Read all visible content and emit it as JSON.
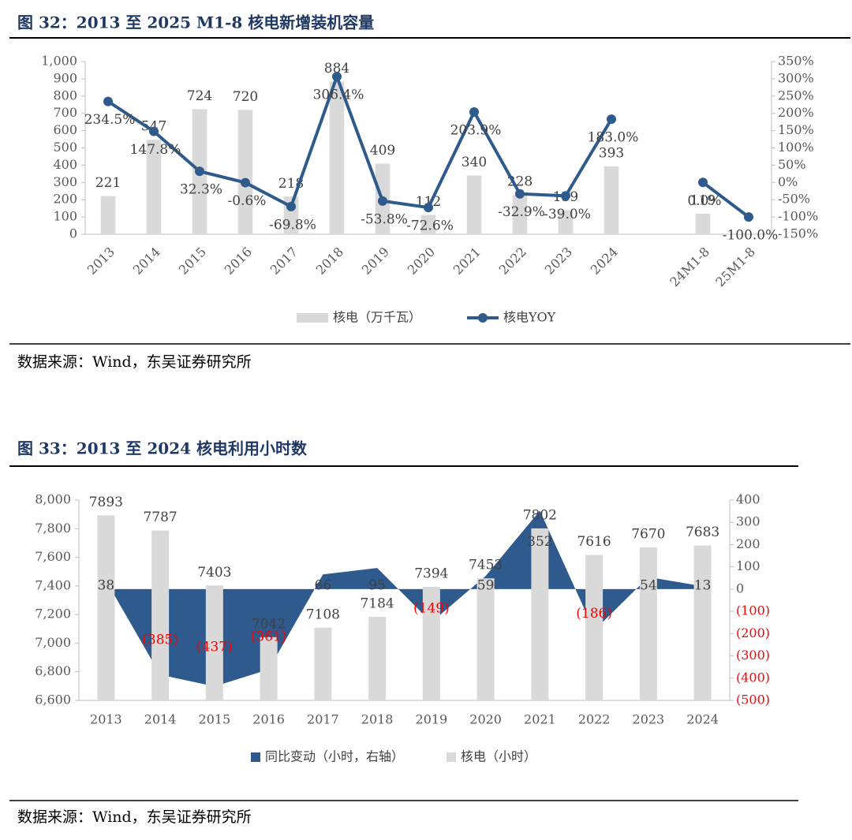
{
  "chart_data": [
    {
      "type": "combo",
      "title": "图 32：2013 至 2025 M1-8 核电新增装机容量",
      "categories": [
        "2013",
        "2014",
        "2015",
        "2016",
        "2017",
        "2018",
        "2019",
        "2020",
        "2021",
        "2022",
        "2023",
        "2024",
        null,
        "24M1-8",
        "25M1-8"
      ],
      "series": [
        {
          "name": "核电（万千瓦）",
          "type": "bar",
          "axis": "y",
          "color": "#d9d9d9",
          "values": [
            221,
            547,
            724,
            720,
            218,
            884,
            409,
            112,
            340,
            228,
            139,
            393,
            null,
            119,
            null
          ]
        },
        {
          "name": "核电YOY",
          "type": "line",
          "axis": "y2",
          "color": "#2e5b8c",
          "values": [
            234.5,
            147.8,
            32.3,
            -0.6,
            -69.8,
            306.4,
            -53.8,
            -72.6,
            203.9,
            -32.9,
            -39.0,
            183.0,
            null,
            0.0,
            -100.0
          ],
          "value_labels": [
            "234.5%",
            "147.8%",
            "32.3%",
            "-0.6%",
            "-69.8%",
            "306.4%",
            "-53.8%",
            "-72.6%",
            "203.9%",
            "-32.9%",
            "-39.0%",
            "183.0%",
            null,
            "0.0%",
            "-100.0%"
          ]
        }
      ],
      "ylim": [
        0,
        1000
      ],
      "yticks": [
        0,
        100,
        200,
        300,
        400,
        500,
        600,
        700,
        800,
        900,
        {
          "value": 1000,
          "label": "1,000"
        }
      ],
      "y2lim": [
        -150,
        350
      ],
      "y2ticks": [
        {
          "value": -150,
          "label": "-150%"
        },
        {
          "value": -100,
          "label": "-100%"
        },
        {
          "value": -50,
          "label": "-50%"
        },
        {
          "value": 0,
          "label": "0%"
        },
        {
          "value": 50,
          "label": "50%"
        },
        {
          "value": 100,
          "label": "100%"
        },
        {
          "value": 150,
          "label": "150%"
        },
        {
          "value": 200,
          "label": "200%"
        },
        {
          "value": 250,
          "label": "250%"
        },
        {
          "value": 300,
          "label": "300%"
        },
        {
          "value": 350,
          "label": "350%"
        }
      ],
      "source": "数据来源：Wind，东吴证券研究所"
    },
    {
      "type": "combo",
      "title": "图 33：2013 至 2024 核电利用小时数",
      "categories": [
        "2013",
        "2014",
        "2015",
        "2016",
        "2017",
        "2018",
        "2019",
        "2020",
        "2021",
        "2022",
        "2023",
        "2024"
      ],
      "series": [
        {
          "name": "同比变动（小时，右轴）",
          "type": "area",
          "axis": "y2",
          "color": "#2f5a8e",
          "values": [
            38,
            -385,
            -437,
            -361,
            66,
            95,
            -149,
            59,
            352,
            -186,
            54,
            13
          ],
          "value_labels": [
            "38",
            "(385)",
            "(437)",
            "(361)",
            "66",
            "95",
            "(149)",
            "59",
            "352",
            "(186)",
            "54",
            "13"
          ]
        },
        {
          "name": "核电（小时）",
          "type": "bar",
          "axis": "y",
          "color": "#d9d9d9",
          "values": [
            7893,
            7787,
            7403,
            7042,
            7108,
            7184,
            7394,
            7453,
            7802,
            7616,
            7670,
            7683
          ]
        }
      ],
      "ylim": [
        6600,
        8000
      ],
      "yticks": [
        {
          "value": 6600,
          "label": "6,600"
        },
        {
          "value": 6800,
          "label": "6,800"
        },
        {
          "value": 7000,
          "label": "7,000"
        },
        {
          "value": 7200,
          "label": "7,200"
        },
        {
          "value": 7400,
          "label": "7,400"
        },
        {
          "value": 7600,
          "label": "7,600"
        },
        {
          "value": 7800,
          "label": "7,800"
        },
        {
          "value": 8000,
          "label": "8,000"
        }
      ],
      "y2lim": [
        -500,
        400
      ],
      "y2ticks": [
        {
          "value": -500,
          "label": "(500)"
        },
        {
          "value": -400,
          "label": "(400)"
        },
        {
          "value": -300,
          "label": "(300)"
        },
        {
          "value": -200,
          "label": "(200)"
        },
        {
          "value": -100,
          "label": "(100)"
        },
        0,
        100,
        200,
        300,
        400
      ],
      "negative_color": "#ff0000",
      "source": "数据来源：Wind，东吴证券研究所"
    }
  ]
}
